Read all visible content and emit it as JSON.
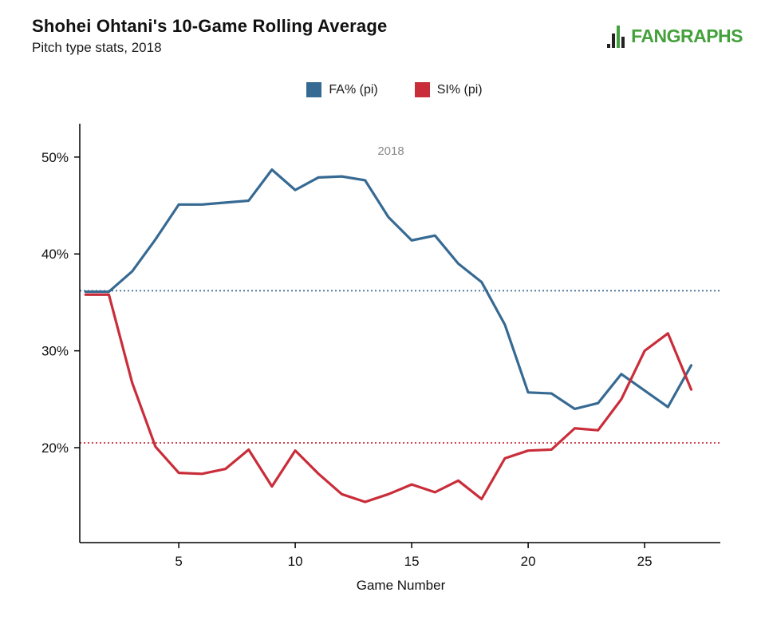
{
  "header": {
    "title": "Shohei Ohtani's 10-Game Rolling Average",
    "subtitle": "Pitch type stats, 2018"
  },
  "logo": {
    "text": "FANGRAPHS",
    "color": "#45a13c"
  },
  "legend": {
    "items": [
      {
        "label": "FA% (pi)",
        "color": "#376a93"
      },
      {
        "label": "SI% (pi)",
        "color": "#c92d39"
      }
    ]
  },
  "chart_data": {
    "type": "line",
    "title": "Shohei Ohtani's 10-Game Rolling Average",
    "subtitle": "Pitch type stats, 2018",
    "annotation": "2018",
    "xlabel": "Game Number",
    "ylabel": "",
    "x": [
      1,
      2,
      3,
      4,
      5,
      6,
      7,
      8,
      9,
      10,
      11,
      12,
      13,
      14,
      15,
      16,
      17,
      18,
      19,
      20,
      21,
      22,
      23,
      24,
      25,
      26,
      27
    ],
    "series": [
      {
        "name": "FA% (pi)",
        "color": "#376a93",
        "values": [
          36.1,
          36.1,
          38.2,
          41.5,
          45.1,
          45.1,
          45.3,
          45.5,
          48.7,
          46.6,
          47.9,
          48.0,
          47.6,
          43.8,
          41.4,
          41.9,
          39.0,
          37.1,
          32.7,
          25.7,
          25.6,
          24.0,
          24.6,
          27.6,
          25.9,
          24.2,
          28.5
        ]
      },
      {
        "name": "SI% (pi)",
        "color": "#c92d39",
        "values": [
          35.8,
          35.8,
          26.7,
          20.1,
          17.4,
          17.3,
          17.8,
          19.8,
          16.0,
          19.7,
          17.3,
          15.2,
          14.4,
          15.2,
          16.2,
          15.4,
          16.6,
          14.7,
          18.9,
          19.7,
          19.8,
          22.0,
          21.8,
          25.0,
          30.0,
          31.8,
          26.0
        ]
      }
    ],
    "reference_lines": [
      {
        "value": 36.2,
        "color": "#376a93",
        "style": "dotted"
      },
      {
        "value": 20.5,
        "color": "#c92d39",
        "style": "dotted"
      }
    ],
    "yticks": [
      20,
      30,
      40,
      50
    ],
    "ytick_labels": [
      "20%",
      "30%",
      "40%",
      "50%"
    ],
    "xticks": [
      5,
      10,
      15,
      20,
      25
    ],
    "ylim": [
      10.2,
      53.2
    ],
    "xlim": [
      0.75,
      28.25
    ],
    "grid": false,
    "legend_position": "top-center"
  }
}
